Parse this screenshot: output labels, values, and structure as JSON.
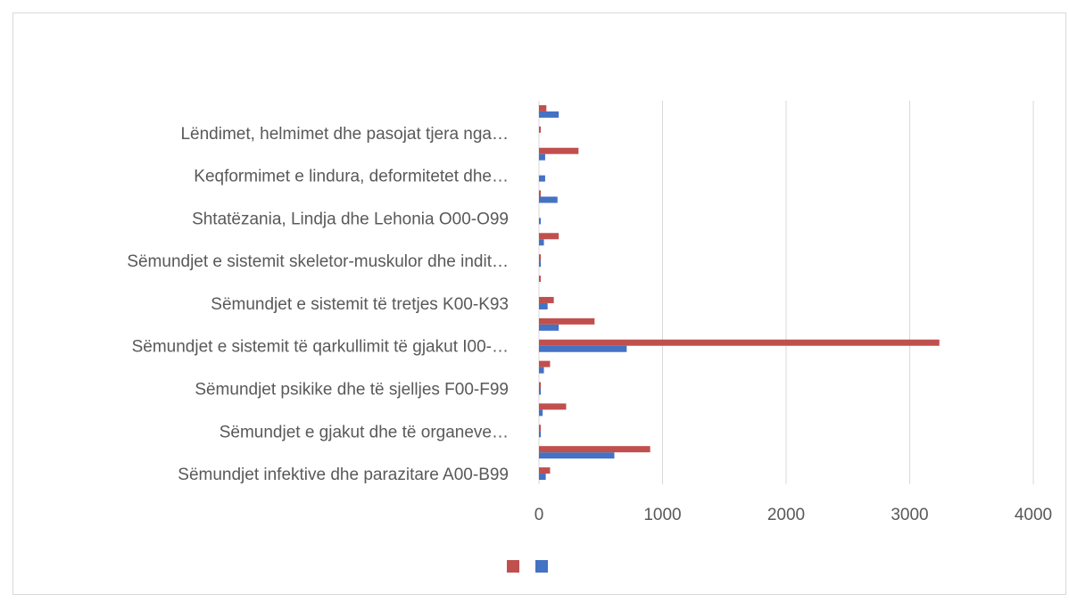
{
  "chart_data": {
    "type": "bar",
    "orientation": "horizontal",
    "categories": [
      "Sëmundjet infektive dhe parazitare A00-B99",
      null,
      "Sëmundjet e gjakut dhe të organeve…",
      null,
      "Sëmundjet psikike dhe të sjelljes F00-F99",
      null,
      "Sëmundjet e sistemit të qarkullimit të gjakut I00-…",
      null,
      "Sëmundjet e sistemit të tretjes K00-K93",
      null,
      "Sëmundjet e sistemit skeletor-muskulor dhe indit…",
      null,
      "Shtatëzania, Lindja dhe Lehonia O00-O99",
      null,
      "Keqformimet e lindura, deformitetet dhe…",
      null,
      "Lëndimet, helmimet dhe pasojat tjera nga…",
      null
    ],
    "series": [
      {
        "color": "#4472c4",
        "values": [
          55,
          610,
          15,
          30,
          15,
          40,
          710,
          160,
          70,
          0,
          15,
          40,
          15,
          150,
          50,
          50,
          0,
          160
        ]
      },
      {
        "color": "#c0504d",
        "values": [
          90,
          900,
          15,
          220,
          15,
          90,
          3240,
          450,
          120,
          15,
          15,
          160,
          0,
          15,
          0,
          320,
          15,
          60
        ]
      }
    ],
    "xlim": [
      0,
      4000
    ],
    "xticks": [
      0,
      1000,
      2000,
      3000,
      4000
    ],
    "grid": true,
    "legend": "bottom"
  }
}
